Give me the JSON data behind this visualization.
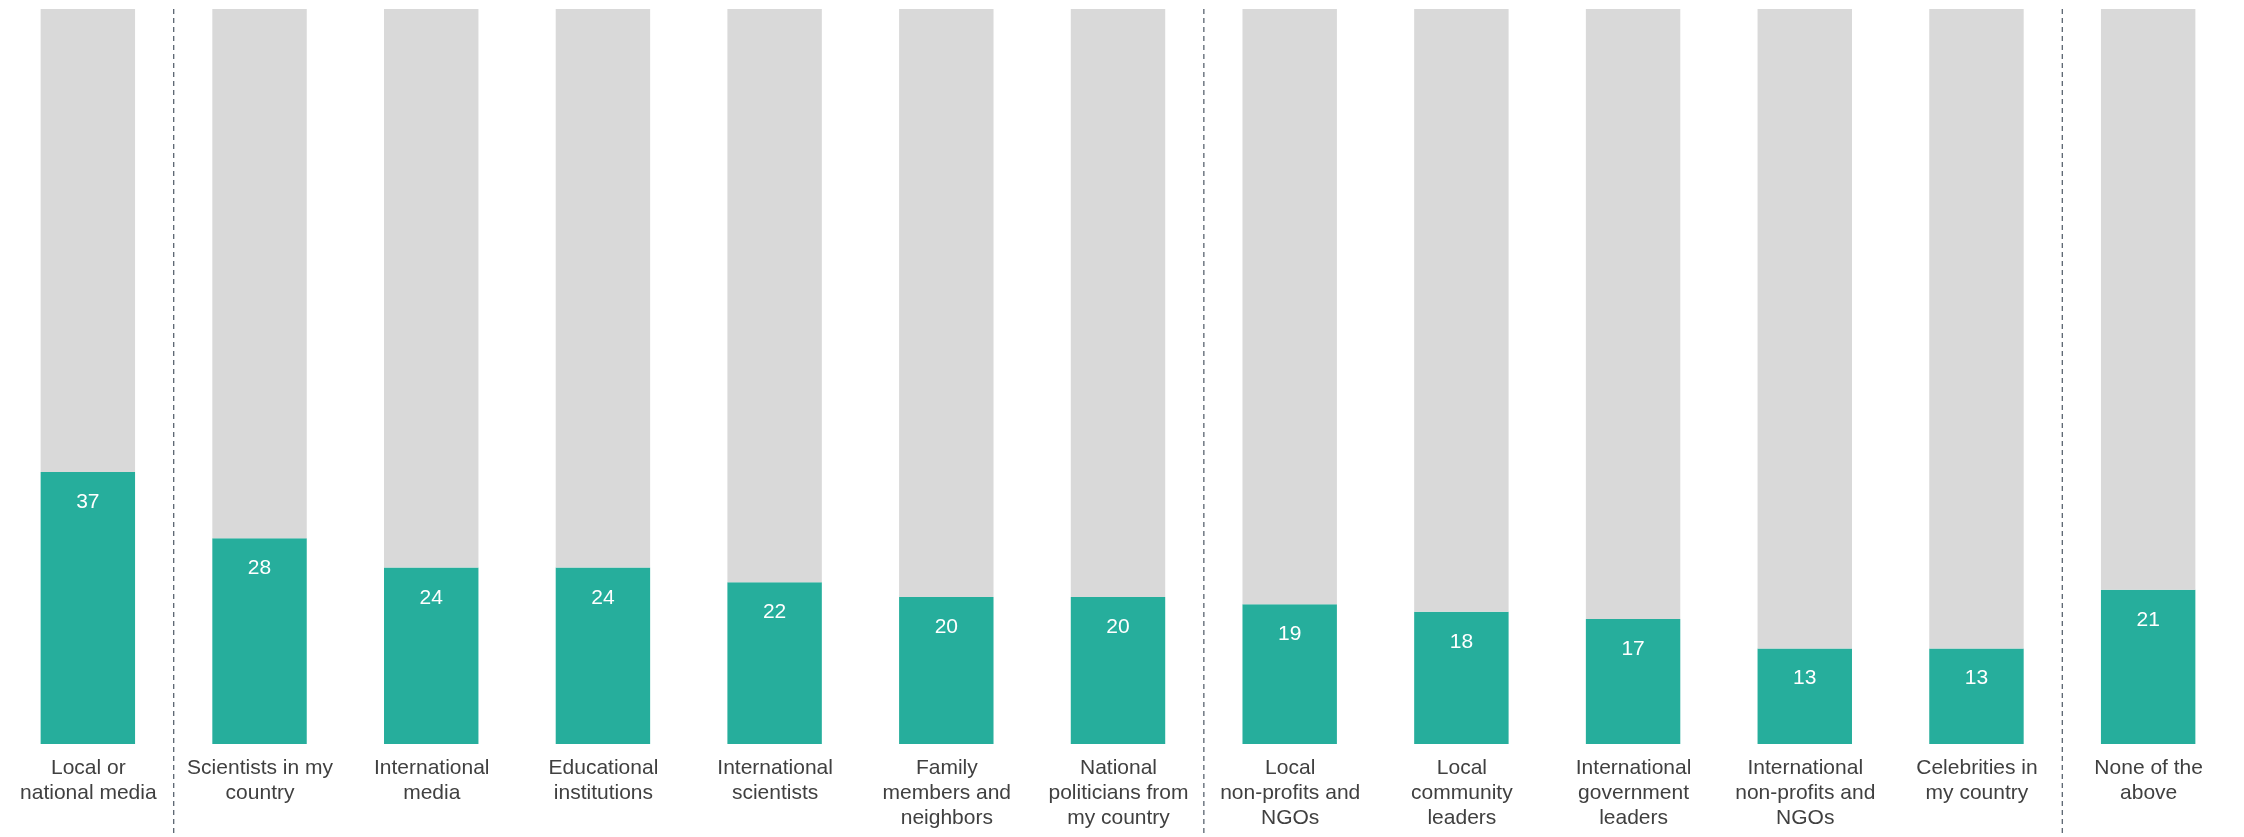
{
  "chart_data": {
    "type": "bar",
    "stacked": true,
    "categories": [
      "Local or national media",
      "Scientists in my country",
      "International media",
      "Educational institutions",
      "International scientists",
      "Family members and neighbors",
      "National politicians from my country",
      "Local non-profits and NGOs",
      "Local community leaders",
      "International government leaders",
      "International non-profits and NGOs",
      "Celebrities in my country",
      "None of the above"
    ],
    "series": [
      {
        "color": "#26ae9c",
        "values": [
          37,
          28,
          24,
          24,
          22,
          20,
          20,
          19,
          18,
          17,
          13,
          13,
          21
        ],
        "value_labels": [
          "37",
          "28",
          "24",
          "24",
          "22",
          "20",
          "20",
          "19",
          "18",
          "17",
          "13",
          "13",
          "21"
        ]
      },
      {
        "color": "#d9d9d9",
        "values": [
          63,
          72,
          76,
          76,
          78,
          80,
          80,
          81,
          82,
          83,
          87,
          87,
          79
        ]
      }
    ],
    "ylim": [
      0,
      100
    ],
    "grid": false
  }
}
